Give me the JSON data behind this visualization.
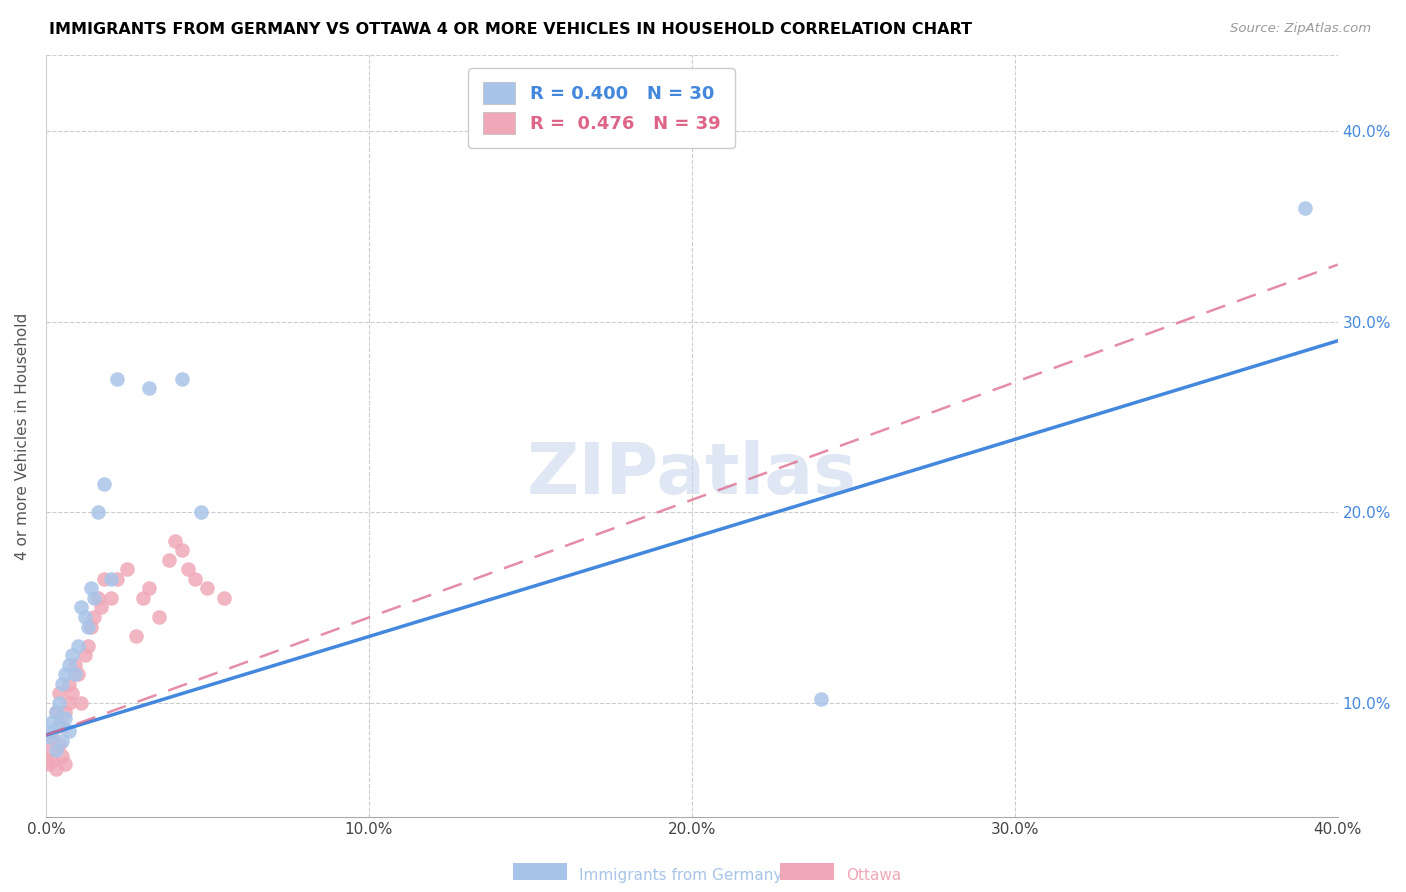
{
  "title": "IMMIGRANTS FROM GERMANY VS OTTAWA 4 OR MORE VEHICLES IN HOUSEHOLD CORRELATION CHART",
  "source": "Source: ZipAtlas.com",
  "ylabel": "4 or more Vehicles in Household",
  "xlabel_bottom_left": "Immigrants from Germany",
  "xlabel_bottom_right": "Ottawa",
  "watermark": "ZIPatlas",
  "blue_R": 0.4,
  "blue_N": 30,
  "pink_R": 0.476,
  "pink_N": 39,
  "blue_color": "#a8c4e8",
  "pink_color": "#f0a8b8",
  "blue_line_color": "#4488dd",
  "pink_line_color": "#dd6688",
  "xlim": [
    0.0,
    0.4
  ],
  "ylim": [
    0.04,
    0.44
  ],
  "blue_line_x": [
    0.0,
    0.4
  ],
  "blue_line_y": [
    0.083,
    0.29
  ],
  "pink_line_x": [
    0.0,
    0.4
  ],
  "pink_line_y": [
    0.083,
    0.33
  ],
  "blue_scatter_x": [
    0.001,
    0.002,
    0.002,
    0.003,
    0.003,
    0.004,
    0.004,
    0.005,
    0.005,
    0.006,
    0.006,
    0.007,
    0.007,
    0.008,
    0.009,
    0.01,
    0.011,
    0.012,
    0.013,
    0.014,
    0.015,
    0.016,
    0.018,
    0.02,
    0.022,
    0.032,
    0.042,
    0.048,
    0.24,
    0.39
  ],
  "blue_scatter_y": [
    0.082,
    0.085,
    0.09,
    0.075,
    0.095,
    0.088,
    0.1,
    0.08,
    0.11,
    0.092,
    0.115,
    0.085,
    0.12,
    0.125,
    0.115,
    0.13,
    0.15,
    0.145,
    0.14,
    0.16,
    0.155,
    0.2,
    0.215,
    0.165,
    0.27,
    0.265,
    0.27,
    0.2,
    0.102,
    0.36
  ],
  "pink_scatter_x": [
    0.001,
    0.001,
    0.002,
    0.002,
    0.003,
    0.003,
    0.004,
    0.004,
    0.005,
    0.005,
    0.006,
    0.006,
    0.007,
    0.007,
    0.008,
    0.009,
    0.01,
    0.011,
    0.012,
    0.013,
    0.014,
    0.015,
    0.016,
    0.017,
    0.018,
    0.02,
    0.022,
    0.025,
    0.028,
    0.03,
    0.032,
    0.035,
    0.038,
    0.04,
    0.042,
    0.044,
    0.046,
    0.05,
    0.055
  ],
  "pink_scatter_y": [
    0.068,
    0.075,
    0.07,
    0.082,
    0.065,
    0.095,
    0.078,
    0.105,
    0.072,
    0.088,
    0.068,
    0.095,
    0.1,
    0.11,
    0.105,
    0.12,
    0.115,
    0.1,
    0.125,
    0.13,
    0.14,
    0.145,
    0.155,
    0.15,
    0.165,
    0.155,
    0.165,
    0.17,
    0.135,
    0.155,
    0.16,
    0.145,
    0.175,
    0.185,
    0.18,
    0.17,
    0.165,
    0.16,
    0.155
  ]
}
